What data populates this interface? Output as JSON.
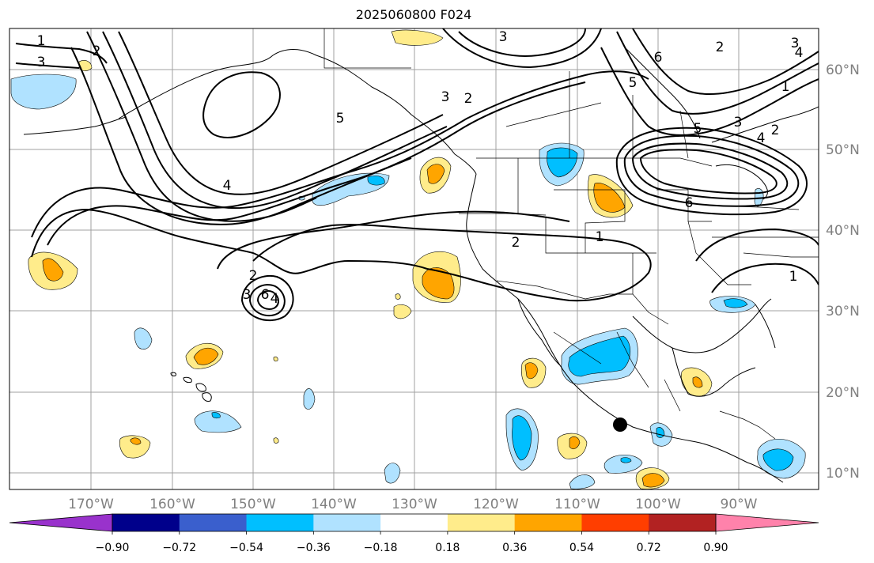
{
  "title": "2025060800 F024",
  "map": {
    "longitude_labels": [
      "170°W",
      "160°W",
      "150°W",
      "140°W",
      "130°W",
      "120°W",
      "110°W",
      "100°W",
      "90°W"
    ],
    "latitude_labels": [
      "60°N",
      "50°N",
      "40°N",
      "30°N",
      "20°N",
      "10°N"
    ],
    "contour_labels": [
      "1",
      "3",
      "2",
      "3",
      "5",
      "4",
      "3",
      "2",
      "6",
      "5",
      "1",
      "3",
      "2",
      "4",
      "6",
      "2",
      "1",
      "2",
      "3",
      "4",
      "1",
      "2",
      "3",
      "4",
      "5",
      "6"
    ],
    "marker": "station-dot"
  },
  "colorbar": {
    "tick_labels": [
      "−0.90",
      "−0.72",
      "−0.54",
      "−0.36",
      "−0.18",
      "0.18",
      "0.36",
      "0.54",
      "0.72",
      "0.90"
    ],
    "colors": [
      "#9932cc",
      "#00008b",
      "#3a5fcd",
      "#00bfff",
      "#b0e2ff",
      "#ffffff",
      "#ffec8b",
      "#ffa500",
      "#ff3e00",
      "#b22222",
      "#ff82ab"
    ],
    "extend": "both"
  }
}
